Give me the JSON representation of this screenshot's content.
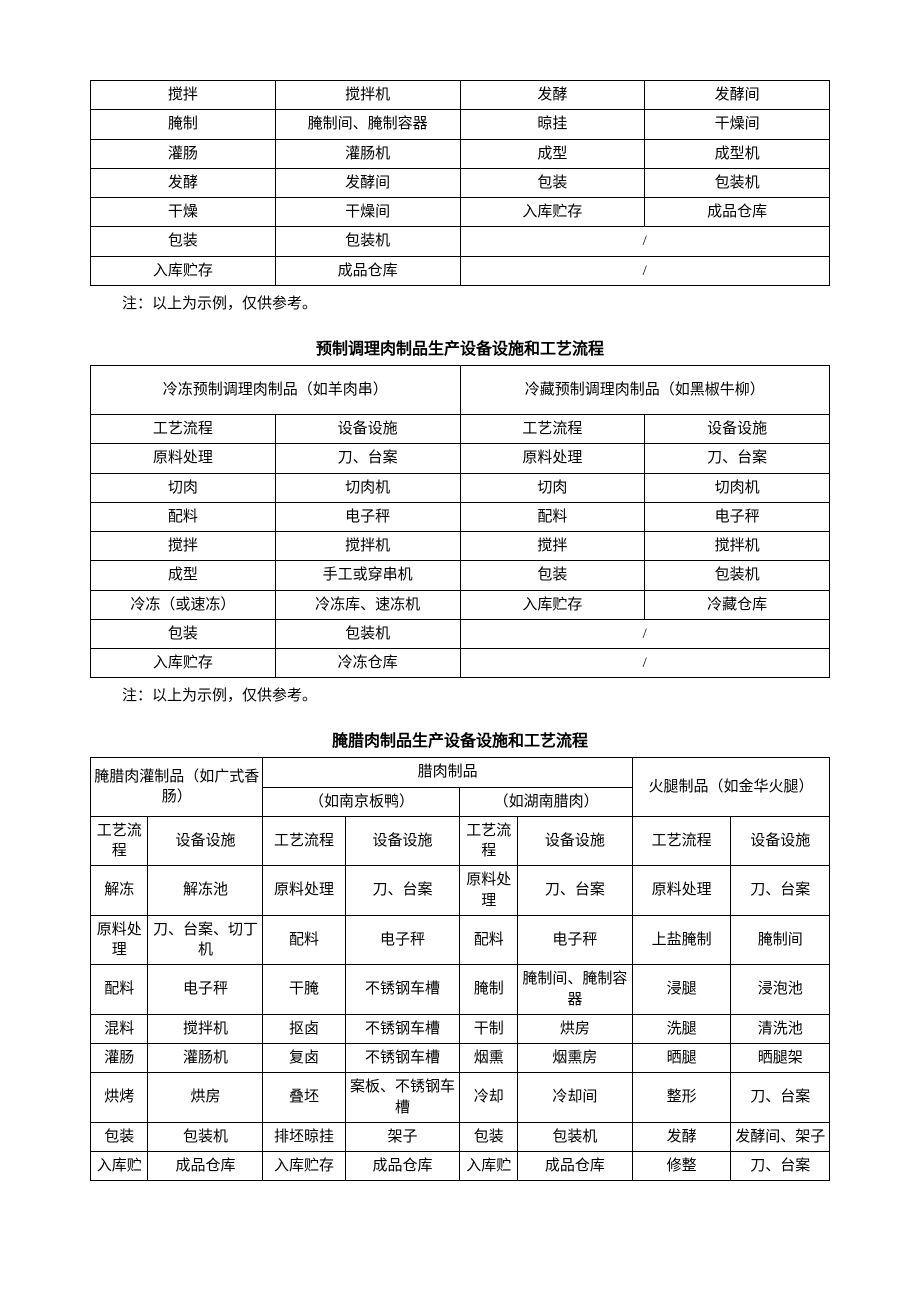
{
  "table1": {
    "rows": [
      [
        "搅拌",
        "搅拌机",
        "发酵",
        "发酵间"
      ],
      [
        "腌制",
        "腌制间、腌制容器",
        "晾挂",
        "干燥间"
      ],
      [
        "灌肠",
        "灌肠机",
        "成型",
        "成型机"
      ],
      [
        "发酵",
        "发酵间",
        "包装",
        "包装机"
      ],
      [
        "干燥",
        "干燥间",
        "入库贮存",
        "成品仓库"
      ],
      [
        "包装",
        "包装机",
        "/",
        ""
      ],
      [
        "入库贮存",
        "成品仓库",
        "/",
        ""
      ]
    ],
    "note": "注：以上为示例，仅供参考。"
  },
  "section2": {
    "title": "预制调理肉制品生产设备设施和工艺流程",
    "head1_left": "冷冻预制调理肉制品（如羊肉串）",
    "head1_right": "冷藏预制调理肉制品（如黑椒牛柳）",
    "sub": [
      "工艺流程",
      "设备设施",
      "工艺流程",
      "设备设施"
    ],
    "rows": [
      [
        "原料处理",
        "刀、台案",
        "原料处理",
        "刀、台案"
      ],
      [
        "切肉",
        "切肉机",
        "切肉",
        "切肉机"
      ],
      [
        "配料",
        "电子秤",
        "配料",
        "电子秤"
      ],
      [
        "搅拌",
        "搅拌机",
        "搅拌",
        "搅拌机"
      ],
      [
        "成型",
        "手工或穿串机",
        "包装",
        "包装机"
      ],
      [
        "冷冻（或速冻）",
        "冷冻库、速冻机",
        "入库贮存",
        "冷藏仓库"
      ],
      [
        "包装",
        "包装机",
        "/",
        ""
      ],
      [
        "入库贮存",
        "冷冻仓库",
        "/",
        ""
      ]
    ],
    "note": "注：以上为示例，仅供参考。"
  },
  "section3": {
    "title": "腌腊肉制品生产设备设施和工艺流程",
    "top": {
      "g1": "腌腊肉灌制品（如广式香肠）",
      "g2": "腊肉制品",
      "g2a": "（如南京板鸭）",
      "g2b": "（如湖南腊肉）",
      "g3": "火腿制品（如金华火腿）"
    },
    "sub": [
      "工艺流程",
      "设备设施",
      "工艺流程",
      "设备设施",
      "工艺流程",
      "设备设施",
      "工艺流程",
      "设备设施"
    ],
    "rows": [
      [
        "解冻",
        "解冻池",
        "原料处理",
        "刀、台案",
        "原料处理",
        "刀、台案",
        "原料处理",
        "刀、台案"
      ],
      [
        "原料处理",
        "刀、台案、切丁机",
        "配料",
        "电子秤",
        "配料",
        "电子秤",
        "上盐腌制",
        "腌制间"
      ],
      [
        "配料",
        "电子秤",
        "干腌",
        "不锈钢车槽",
        "腌制",
        "腌制间、腌制容器",
        "浸腿",
        "浸泡池"
      ],
      [
        "混料",
        "搅拌机",
        "抠卤",
        "不锈钢车槽",
        "干制",
        "烘房",
        "洗腿",
        "清洗池"
      ],
      [
        "灌肠",
        "灌肠机",
        "复卤",
        "不锈钢车槽",
        "烟熏",
        "烟熏房",
        "晒腿",
        "晒腿架"
      ],
      [
        "烘烤",
        "烘房",
        "叠坯",
        "案板、不锈钢车槽",
        "冷却",
        "冷却间",
        "整形",
        "刀、台案"
      ],
      [
        "包装",
        "包装机",
        "排坯晾挂",
        "架子",
        "包装",
        "包装机",
        "发酵",
        "发酵间、架子"
      ],
      [
        "入库贮",
        "成品仓库",
        "入库贮存",
        "成品仓库",
        "入库贮",
        "成品仓库",
        "修整",
        "刀、台案"
      ]
    ]
  }
}
